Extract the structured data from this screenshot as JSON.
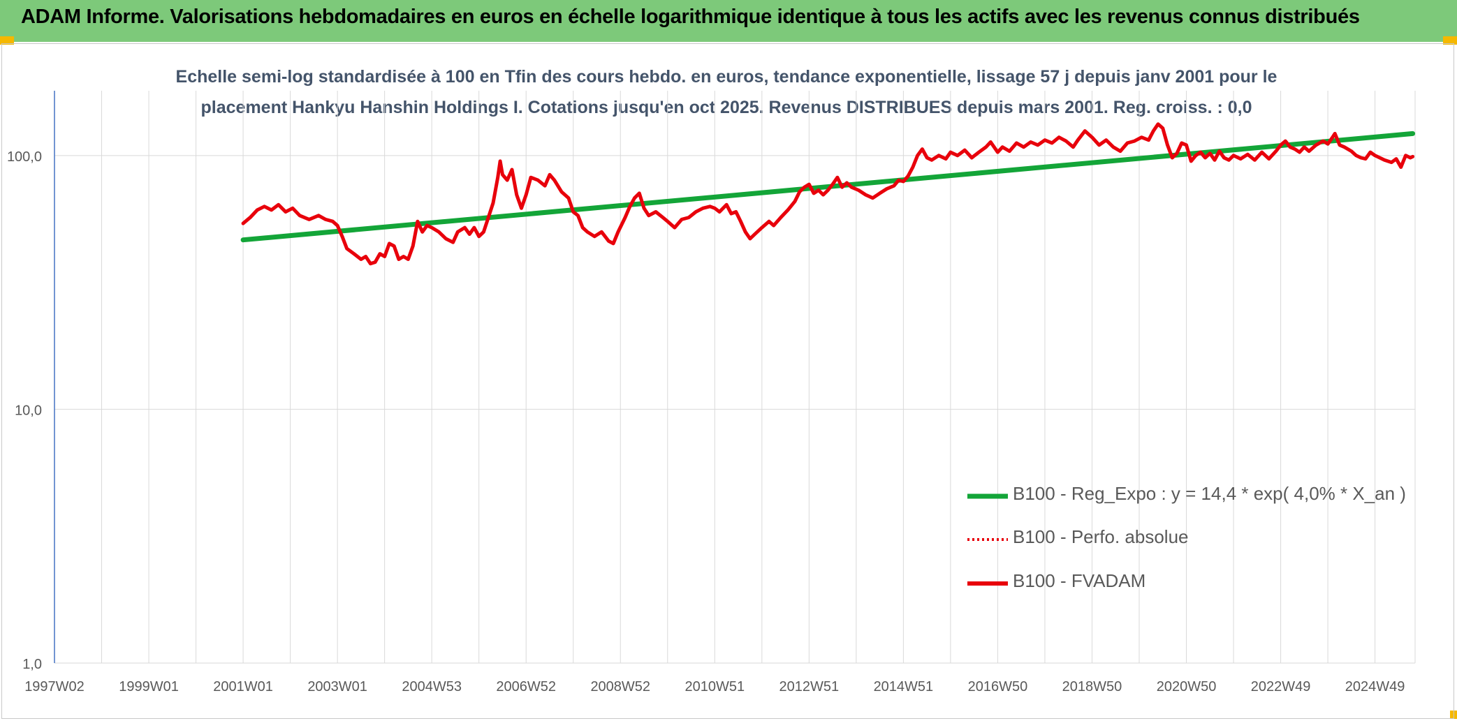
{
  "banner": {
    "text": "ADAM Informe. Valorisations hebdomadaires en euros en échelle logarithmique identique à tous les actifs avec les revenus connus distribués"
  },
  "colors": {
    "banner": "#7dc97a",
    "corner": "#f5b800",
    "title": "#44546a",
    "regression": "#13a538",
    "fvadam": "#e8000b",
    "axis": "#4472c4",
    "grid": "#d9d9d9"
  },
  "chart_data": {
    "type": "line",
    "title_line1": "Echelle semi-log standardisée à 100 en Tfin des cours hebdo. en euros, tendance exponentielle, lissage 57 j depuis janv 2001 pour le",
    "title_line2": "placement Hankyu Hanshin Holdings I. Cotations jusqu'en oct 2025. Revenus DISTRIBUES depuis mars 2001. Reg. croiss. : 0,0",
    "y_scale": "log",
    "ylim": [
      1,
      180
    ],
    "y_ticks": [
      {
        "value": 1,
        "label": "1,0"
      },
      {
        "value": 10,
        "label": "10,0"
      },
      {
        "value": 100,
        "label": "100,0"
      }
    ],
    "xlim": [
      1997.0,
      2025.85
    ],
    "x_ticks": [
      {
        "value": 1997.0,
        "label": "1997W02"
      },
      {
        "value": 1999.0,
        "label": "1999W01"
      },
      {
        "value": 2001.0,
        "label": "2001W01"
      },
      {
        "value": 2003.0,
        "label": "2003W01"
      },
      {
        "value": 2005.0,
        "label": "2004W53"
      },
      {
        "value": 2007.0,
        "label": "2006W52"
      },
      {
        "value": 2009.0,
        "label": "2008W52"
      },
      {
        "value": 2011.0,
        "label": "2010W51"
      },
      {
        "value": 2013.0,
        "label": "2012W51"
      },
      {
        "value": 2015.0,
        "label": "2014W51"
      },
      {
        "value": 2017.0,
        "label": "2016W50"
      },
      {
        "value": 2019.0,
        "label": "2018W50"
      },
      {
        "value": 2021.0,
        "label": "2020W50"
      },
      {
        "value": 2023.0,
        "label": "2022W49"
      },
      {
        "value": 2025.0,
        "label": "2024W49"
      }
    ],
    "grid": true,
    "legend_position": "bottom-right",
    "series": [
      {
        "name": "B100 - Reg_Expo : y = 14,4 * exp( 4,0% *  X_an )",
        "style": "solid",
        "color": "#13a538",
        "points": [
          [
            2001.0,
            46.5
          ],
          [
            2025.8,
            122
          ]
        ]
      },
      {
        "name": "B100 - Perfo. absolue",
        "style": "dotted",
        "color": "#e8000b",
        "points": []
      },
      {
        "name": "B100 - FVADAM",
        "style": "solid",
        "color": "#e8000b",
        "points": [
          [
            2001.0,
            54
          ],
          [
            2001.15,
            57
          ],
          [
            2001.3,
            61
          ],
          [
            2001.45,
            63
          ],
          [
            2001.6,
            61
          ],
          [
            2001.75,
            64
          ],
          [
            2001.9,
            60
          ],
          [
            2002.05,
            62
          ],
          [
            2002.2,
            58
          ],
          [
            2002.4,
            56
          ],
          [
            2002.6,
            58
          ],
          [
            2002.75,
            56
          ],
          [
            2002.9,
            55
          ],
          [
            2003.0,
            53
          ],
          [
            2003.1,
            48
          ],
          [
            2003.2,
            43
          ],
          [
            2003.35,
            41
          ],
          [
            2003.5,
            39
          ],
          [
            2003.6,
            40
          ],
          [
            2003.7,
            37.5
          ],
          [
            2003.8,
            38
          ],
          [
            2003.9,
            41
          ],
          [
            2004.0,
            40
          ],
          [
            2004.1,
            45
          ],
          [
            2004.2,
            44
          ],
          [
            2004.3,
            39
          ],
          [
            2004.4,
            40
          ],
          [
            2004.5,
            39
          ],
          [
            2004.6,
            44
          ],
          [
            2004.7,
            55
          ],
          [
            2004.8,
            50
          ],
          [
            2004.9,
            53
          ],
          [
            2005.0,
            52
          ],
          [
            2005.15,
            50
          ],
          [
            2005.3,
            47
          ],
          [
            2005.45,
            45.5
          ],
          [
            2005.55,
            50
          ],
          [
            2005.7,
            52
          ],
          [
            2005.8,
            49
          ],
          [
            2005.9,
            52
          ],
          [
            2006.0,
            48
          ],
          [
            2006.1,
            50
          ],
          [
            2006.2,
            57
          ],
          [
            2006.3,
            65
          ],
          [
            2006.4,
            82
          ],
          [
            2006.45,
            95
          ],
          [
            2006.5,
            84
          ],
          [
            2006.6,
            80
          ],
          [
            2006.7,
            88
          ],
          [
            2006.8,
            70
          ],
          [
            2006.9,
            62
          ],
          [
            2007.0,
            70
          ],
          [
            2007.1,
            82
          ],
          [
            2007.25,
            80
          ],
          [
            2007.4,
            76
          ],
          [
            2007.5,
            84
          ],
          [
            2007.6,
            80
          ],
          [
            2007.75,
            72
          ],
          [
            2007.9,
            68
          ],
          [
            2008.0,
            60
          ],
          [
            2008.1,
            58
          ],
          [
            2008.2,
            52
          ],
          [
            2008.3,
            50
          ],
          [
            2008.45,
            48
          ],
          [
            2008.6,
            50
          ],
          [
            2008.75,
            46
          ],
          [
            2008.85,
            45
          ],
          [
            2008.95,
            50
          ],
          [
            2009.1,
            57
          ],
          [
            2009.2,
            63
          ],
          [
            2009.3,
            68
          ],
          [
            2009.4,
            71
          ],
          [
            2009.5,
            62
          ],
          [
            2009.6,
            58
          ],
          [
            2009.75,
            60
          ],
          [
            2009.9,
            57
          ],
          [
            2010.0,
            55
          ],
          [
            2010.15,
            52
          ],
          [
            2010.3,
            56
          ],
          [
            2010.45,
            57
          ],
          [
            2010.6,
            60
          ],
          [
            2010.75,
            62
          ],
          [
            2010.9,
            63
          ],
          [
            2011.0,
            62
          ],
          [
            2011.1,
            60
          ],
          [
            2011.25,
            64
          ],
          [
            2011.35,
            59
          ],
          [
            2011.45,
            60
          ],
          [
            2011.55,
            55
          ],
          [
            2011.65,
            50
          ],
          [
            2011.75,
            47
          ],
          [
            2011.85,
            49
          ],
          [
            2012.0,
            52
          ],
          [
            2012.15,
            55
          ],
          [
            2012.25,
            53
          ],
          [
            2012.4,
            57
          ],
          [
            2012.55,
            61
          ],
          [
            2012.7,
            66
          ],
          [
            2012.8,
            72
          ],
          [
            2012.9,
            75
          ],
          [
            2013.0,
            77
          ],
          [
            2013.1,
            71
          ],
          [
            2013.2,
            73
          ],
          [
            2013.3,
            70
          ],
          [
            2013.4,
            73
          ],
          [
            2013.5,
            77
          ],
          [
            2013.6,
            82
          ],
          [
            2013.7,
            75
          ],
          [
            2013.8,
            78
          ],
          [
            2013.9,
            75
          ],
          [
            2014.05,
            73
          ],
          [
            2014.2,
            70
          ],
          [
            2014.35,
            68
          ],
          [
            2014.5,
            71
          ],
          [
            2014.65,
            74
          ],
          [
            2014.8,
            76
          ],
          [
            2014.9,
            80
          ],
          [
            2015.0,
            79
          ],
          [
            2015.1,
            83
          ],
          [
            2015.2,
            90
          ],
          [
            2015.3,
            100
          ],
          [
            2015.4,
            106
          ],
          [
            2015.5,
            98
          ],
          [
            2015.6,
            96
          ],
          [
            2015.75,
            100
          ],
          [
            2015.9,
            97
          ],
          [
            2016.0,
            103
          ],
          [
            2016.15,
            100
          ],
          [
            2016.3,
            105
          ],
          [
            2016.45,
            98
          ],
          [
            2016.6,
            103
          ],
          [
            2016.75,
            108
          ],
          [
            2016.85,
            113
          ],
          [
            2017.0,
            103
          ],
          [
            2017.1,
            108
          ],
          [
            2017.25,
            104
          ],
          [
            2017.4,
            112
          ],
          [
            2017.55,
            108
          ],
          [
            2017.7,
            113
          ],
          [
            2017.85,
            110
          ],
          [
            2018.0,
            115
          ],
          [
            2018.15,
            112
          ],
          [
            2018.3,
            118
          ],
          [
            2018.45,
            114
          ],
          [
            2018.6,
            108
          ],
          [
            2018.7,
            115
          ],
          [
            2018.85,
            125
          ],
          [
            2019.0,
            118
          ],
          [
            2019.15,
            110
          ],
          [
            2019.3,
            115
          ],
          [
            2019.45,
            108
          ],
          [
            2019.6,
            104
          ],
          [
            2019.75,
            112
          ],
          [
            2019.9,
            114
          ],
          [
            2020.05,
            118
          ],
          [
            2020.2,
            115
          ],
          [
            2020.3,
            125
          ],
          [
            2020.4,
            133
          ],
          [
            2020.5,
            128
          ],
          [
            2020.6,
            110
          ],
          [
            2020.7,
            98
          ],
          [
            2020.8,
            102
          ],
          [
            2020.9,
            112
          ],
          [
            2021.0,
            110
          ],
          [
            2021.1,
            95
          ],
          [
            2021.2,
            100
          ],
          [
            2021.3,
            103
          ],
          [
            2021.4,
            98
          ],
          [
            2021.5,
            102
          ],
          [
            2021.6,
            96
          ],
          [
            2021.7,
            104
          ],
          [
            2021.8,
            98
          ],
          [
            2021.9,
            96
          ],
          [
            2022.0,
            100
          ],
          [
            2022.15,
            97
          ],
          [
            2022.3,
            101
          ],
          [
            2022.45,
            96
          ],
          [
            2022.6,
            103
          ],
          [
            2022.75,
            97
          ],
          [
            2022.9,
            104
          ],
          [
            2023.0,
            110
          ],
          [
            2023.1,
            114
          ],
          [
            2023.2,
            108
          ],
          [
            2023.3,
            106
          ],
          [
            2023.4,
            103
          ],
          [
            2023.5,
            108
          ],
          [
            2023.6,
            104
          ],
          [
            2023.75,
            110
          ],
          [
            2023.9,
            114
          ],
          [
            2024.0,
            111
          ],
          [
            2024.1,
            118
          ],
          [
            2024.15,
            122
          ],
          [
            2024.25,
            110
          ],
          [
            2024.35,
            108
          ],
          [
            2024.5,
            104
          ],
          [
            2024.6,
            100
          ],
          [
            2024.7,
            98
          ],
          [
            2024.8,
            97
          ],
          [
            2024.9,
            103
          ],
          [
            2025.0,
            100
          ],
          [
            2025.1,
            98
          ],
          [
            2025.2,
            96
          ],
          [
            2025.35,
            94
          ],
          [
            2025.45,
            97
          ],
          [
            2025.55,
            90
          ],
          [
            2025.65,
            100
          ],
          [
            2025.75,
            98
          ],
          [
            2025.8,
            99
          ]
        ]
      }
    ]
  }
}
